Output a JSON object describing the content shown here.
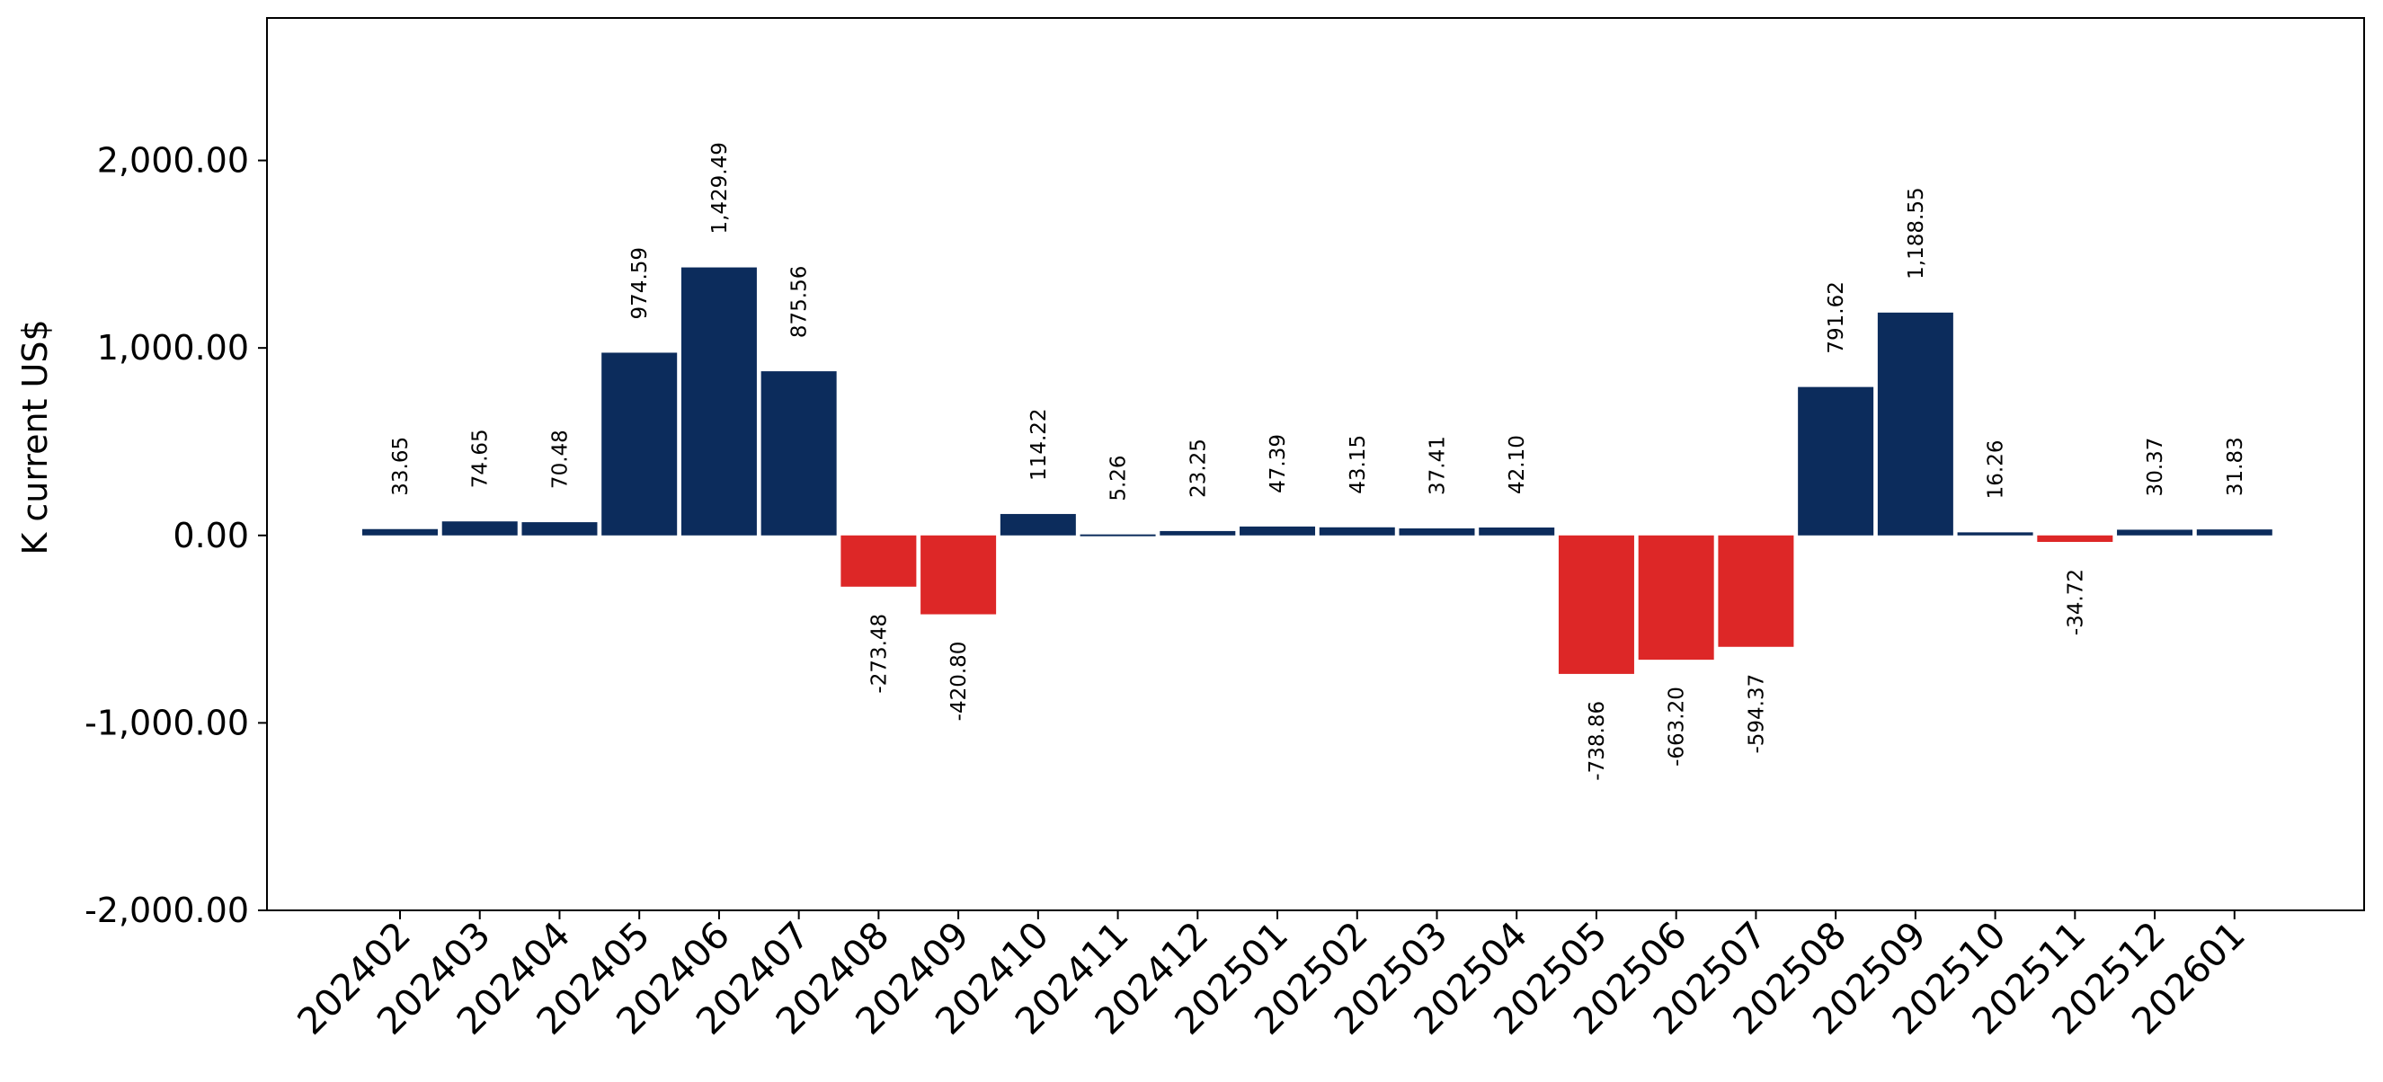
{
  "chart_data": {
    "type": "bar",
    "title": "",
    "xlabel": "",
    "ylabel": "K current US$",
    "ylim": [
      -2000,
      2760
    ],
    "yticks": [
      -2000,
      -1000,
      0,
      1000,
      2000
    ],
    "ytick_labels": [
      "-2,000.00",
      "-1,000.00",
      "0.00",
      "1,000.00",
      "2,000.00"
    ],
    "grid": false,
    "legend": "none",
    "colors": {
      "positive": "#0c2c5c",
      "negative": "#dd2727"
    },
    "categories": [
      "202402",
      "202403",
      "202404",
      "202405",
      "202406",
      "202407",
      "202408",
      "202409",
      "202410",
      "202411",
      "202412",
      "202501",
      "202502",
      "202503",
      "202504",
      "202505",
      "202506",
      "202507",
      "202508",
      "202509",
      "202510",
      "202511",
      "202512",
      "202601"
    ],
    "values": [
      33.65,
      74.65,
      70.48,
      974.59,
      1429.49,
      875.56,
      -273.48,
      -420.8,
      114.22,
      5.26,
      23.25,
      47.39,
      43.15,
      37.41,
      42.1,
      -738.86,
      -663.2,
      -594.37,
      791.62,
      1188.55,
      16.26,
      -34.72,
      30.37,
      31.83
    ],
    "value_labels": [
      "33.65",
      "74.65",
      "70.48",
      "974.59",
      "1,429.49",
      "875.56",
      "-273.48",
      "-420.80",
      "114.22",
      "5.26",
      "23.25",
      "47.39",
      "43.15",
      "37.41",
      "42.10",
      "-738.86",
      "-663.20",
      "-594.37",
      "791.62",
      "1,188.55",
      "16.26",
      "-34.72",
      "30.37",
      "31.83"
    ]
  }
}
